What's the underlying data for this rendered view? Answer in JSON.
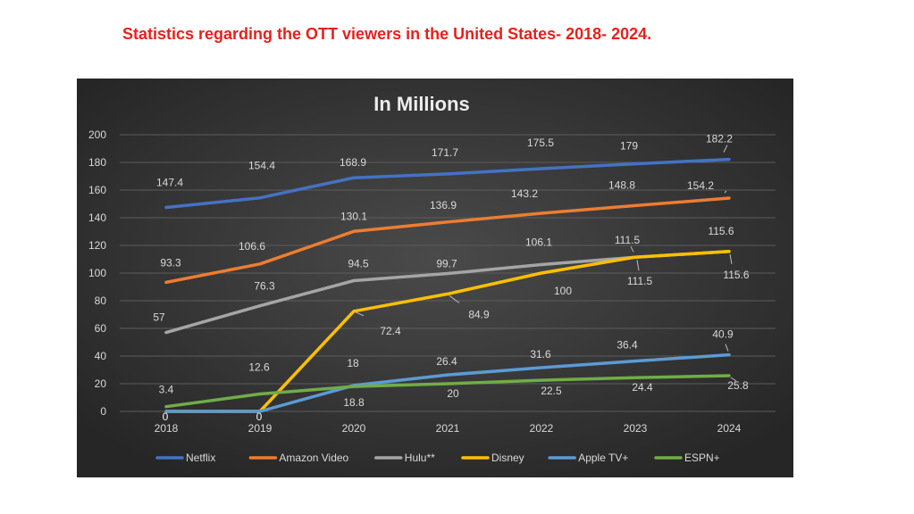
{
  "page": {
    "title": "Statistics regarding the OTT viewers in the United States- 2018- 2024.",
    "title_color": "#e8201c"
  },
  "chart_data": {
    "type": "line",
    "title": "In Millions",
    "xlabel": "",
    "ylabel": "",
    "x": [
      "2018",
      "2019",
      "2020",
      "2021",
      "2022",
      "2023",
      "2024"
    ],
    "ylim": [
      0,
      200
    ],
    "yticks": [
      0,
      20,
      40,
      60,
      80,
      100,
      120,
      140,
      160,
      180,
      200
    ],
    "grid": true,
    "legend_position": "bottom",
    "background": "#3a3a3a",
    "series": [
      {
        "name": "Netflix",
        "color": "#4472c4",
        "values": [
          147.4,
          154.4,
          168.9,
          171.7,
          175.5,
          179,
          182.2
        ],
        "labels": [
          "147.4",
          "154.4",
          "168.9",
          "171.7",
          "175.5",
          "179",
          "182.2"
        ]
      },
      {
        "name": "Amazon Video",
        "color": "#ed7d31",
        "values": [
          93.3,
          106.6,
          130.1,
          136.9,
          143.2,
          148.8,
          154.2
        ],
        "labels": [
          "93.3",
          "106.6",
          "130.1",
          "136.9",
          "143.2",
          "148.8",
          "154.2"
        ]
      },
      {
        "name": "Hulu**",
        "color": "#a5a5a5",
        "values": [
          57,
          76.3,
          94.5,
          99.7,
          106.1,
          111.5,
          115.6
        ],
        "labels": [
          "57",
          "76.3",
          "94.5",
          "99.7",
          "106.1",
          "111.5",
          "115.6"
        ]
      },
      {
        "name": "Disney",
        "color": "#ffc000",
        "values": [
          0,
          0,
          72.4,
          84.9,
          100,
          111.5,
          115.6
        ],
        "labels": [
          "0",
          "0",
          "72.4",
          "84.9",
          "100",
          "111.5",
          "115.6"
        ]
      },
      {
        "name": "Apple TV+",
        "color": "#5b9bd5",
        "values": [
          0,
          0,
          18.8,
          26.4,
          31.6,
          36.4,
          40.9
        ],
        "labels": [
          "0",
          "0",
          "18.8",
          "26.4",
          "31.6",
          "36.4",
          "40.9"
        ]
      },
      {
        "name": "ESPN+",
        "color": "#70ad47",
        "values": [
          3.4,
          12.6,
          18,
          20,
          22.5,
          24.4,
          25.8
        ],
        "labels": [
          "3.4",
          "12.6",
          "18",
          "20",
          "22.5",
          "24.4",
          "25.8"
        ]
      }
    ]
  }
}
